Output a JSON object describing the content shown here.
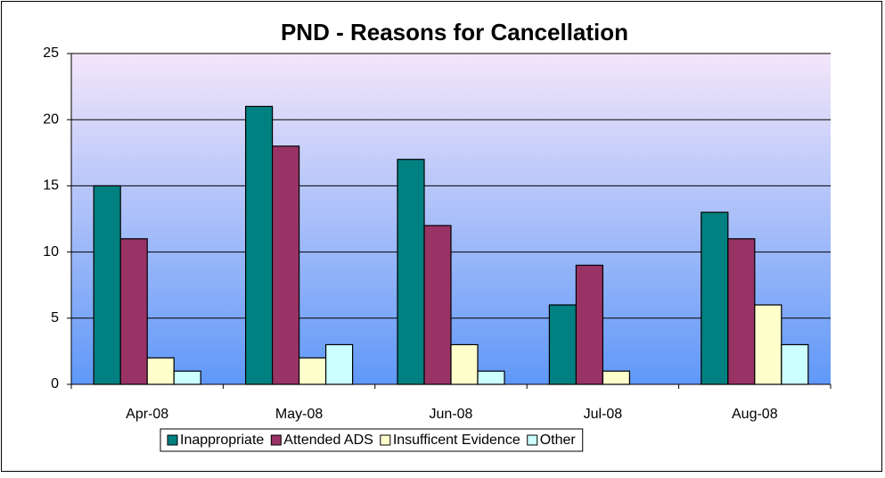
{
  "chart_data": {
    "type": "bar",
    "title": "PND - Reasons for Cancellation",
    "categories": [
      "Apr-08",
      "May-08",
      "Jun-08",
      "Jul-08",
      "Aug-08"
    ],
    "series": [
      {
        "name": "Inappropriate",
        "color": "#008080",
        "values": [
          15,
          21,
          17,
          6,
          13
        ]
      },
      {
        "name": "Attended ADS",
        "color": "#993366",
        "values": [
          11,
          18,
          12,
          9,
          11
        ]
      },
      {
        "name": "Insufficent Evidence",
        "color": "#FFFFCC",
        "values": [
          2,
          2,
          3,
          1,
          6
        ]
      },
      {
        "name": "Other",
        "color": "#CCFFFF",
        "values": [
          1,
          3,
          1,
          0,
          3
        ]
      }
    ],
    "ylim": [
      0,
      25
    ],
    "yticks": [
      0,
      5,
      10,
      15,
      20,
      25
    ],
    "grid": true,
    "legend": "bottom"
  }
}
